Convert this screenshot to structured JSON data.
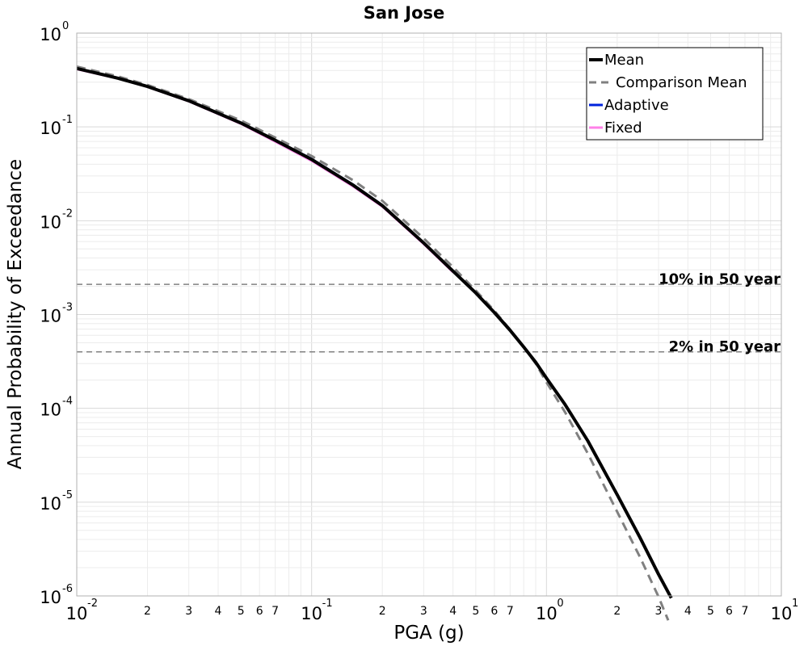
{
  "chart_data": {
    "type": "line",
    "title": "San Jose",
    "xlabel": "PGA (g)",
    "ylabel": "Annual Probability of Exceedance",
    "xscale": "log",
    "yscale": "log",
    "xlim": [
      0.01,
      10
    ],
    "ylim": [
      1e-06,
      1
    ],
    "grid": true,
    "legend_position": "top-right",
    "x_tick_labels": [
      {
        "base": "10",
        "exp": "-2"
      },
      {
        "base": "10",
        "exp": "-1"
      },
      {
        "base": "10",
        "exp": "0"
      },
      {
        "base": "10",
        "exp": "1"
      }
    ],
    "y_tick_labels": [
      {
        "base": "10",
        "exp": "0"
      },
      {
        "base": "10",
        "exp": "-1"
      },
      {
        "base": "10",
        "exp": "-2"
      },
      {
        "base": "10",
        "exp": "-3"
      },
      {
        "base": "10",
        "exp": "-4"
      },
      {
        "base": "10",
        "exp": "-5"
      },
      {
        "base": "10",
        "exp": "-6"
      }
    ],
    "x_minor_labels": [
      "2",
      "3",
      "4",
      "5",
      "6",
      "7"
    ],
    "reference_lines": [
      {
        "label": "10% in 50 year",
        "y": 0.0021,
        "color": "#808080"
      },
      {
        "label": "2% in 50 year",
        "y": 0.0004,
        "color": "#808080"
      }
    ],
    "series": [
      {
        "name": "Mean",
        "color": "#000000",
        "style": "solid",
        "x": [
          0.01,
          0.015,
          0.02,
          0.03,
          0.05,
          0.07,
          0.1,
          0.15,
          0.2,
          0.3,
          0.4,
          0.5,
          0.6,
          0.7,
          0.8,
          0.9,
          1.0,
          1.2,
          1.5,
          2.0,
          2.5,
          3.0,
          3.4
        ],
        "y": [
          0.42,
          0.33,
          0.27,
          0.19,
          0.11,
          0.072,
          0.045,
          0.024,
          0.0145,
          0.0058,
          0.0029,
          0.0017,
          0.00105,
          0.00068,
          0.00045,
          0.00031,
          0.00021,
          0.00011,
          4.5e-05,
          1.2e-05,
          4.2e-06,
          1.7e-06,
          9.5e-07
        ]
      },
      {
        "name": "Comparison Mean",
        "color": "#808080",
        "style": "dashed",
        "x": [
          0.01,
          0.015,
          0.02,
          0.03,
          0.05,
          0.07,
          0.1,
          0.15,
          0.2,
          0.3,
          0.4,
          0.5,
          0.6,
          0.7,
          0.8,
          0.9,
          1.0,
          1.2,
          1.5,
          2.0,
          2.5,
          3.0,
          3.3
        ],
        "y": [
          0.44,
          0.345,
          0.28,
          0.198,
          0.117,
          0.077,
          0.049,
          0.027,
          0.0163,
          0.0065,
          0.0032,
          0.0018,
          0.0011,
          0.00069,
          0.00045,
          0.0003,
          0.00019,
          9.1e-05,
          3.3e-05,
          7.9e-06,
          2.6e-06,
          9.8e-07,
          5.5e-07
        ]
      },
      {
        "name": "Adaptive",
        "color": "#0022dd",
        "style": "solid",
        "x": [
          0.01,
          0.015,
          0.02,
          0.03,
          0.05,
          0.07,
          0.1,
          0.15,
          0.2,
          0.3,
          0.4
        ],
        "y": [
          0.42,
          0.335,
          0.272,
          0.192,
          0.112,
          0.073,
          0.046,
          0.0245,
          0.0148,
          0.0059,
          0.0029
        ]
      },
      {
        "name": "Fixed",
        "color": "#ff80e8",
        "style": "solid",
        "x": [
          0.01,
          0.015,
          0.02,
          0.03,
          0.05,
          0.07,
          0.1,
          0.15,
          0.2,
          0.3,
          0.4
        ],
        "y": [
          0.41,
          0.325,
          0.265,
          0.186,
          0.107,
          0.069,
          0.043,
          0.023,
          0.014,
          0.0056,
          0.0028
        ]
      }
    ]
  }
}
